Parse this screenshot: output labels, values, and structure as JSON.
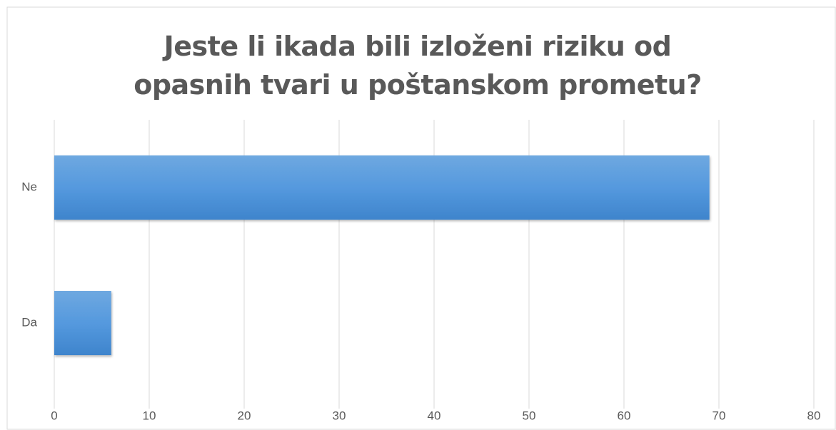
{
  "chart_data": {
    "type": "hbar",
    "title": "Jeste li ikada bili izloženi riziku od opasnih tvari u poštanskom prometu?",
    "categories": [
      "Da",
      "Ne"
    ],
    "values": [
      6,
      69
    ],
    "color": "#5b9bd5",
    "xlim": [
      0,
      80
    ],
    "xticks": [
      0,
      10,
      20,
      30,
      40,
      50,
      60,
      70,
      80
    ],
    "grid": true
  }
}
